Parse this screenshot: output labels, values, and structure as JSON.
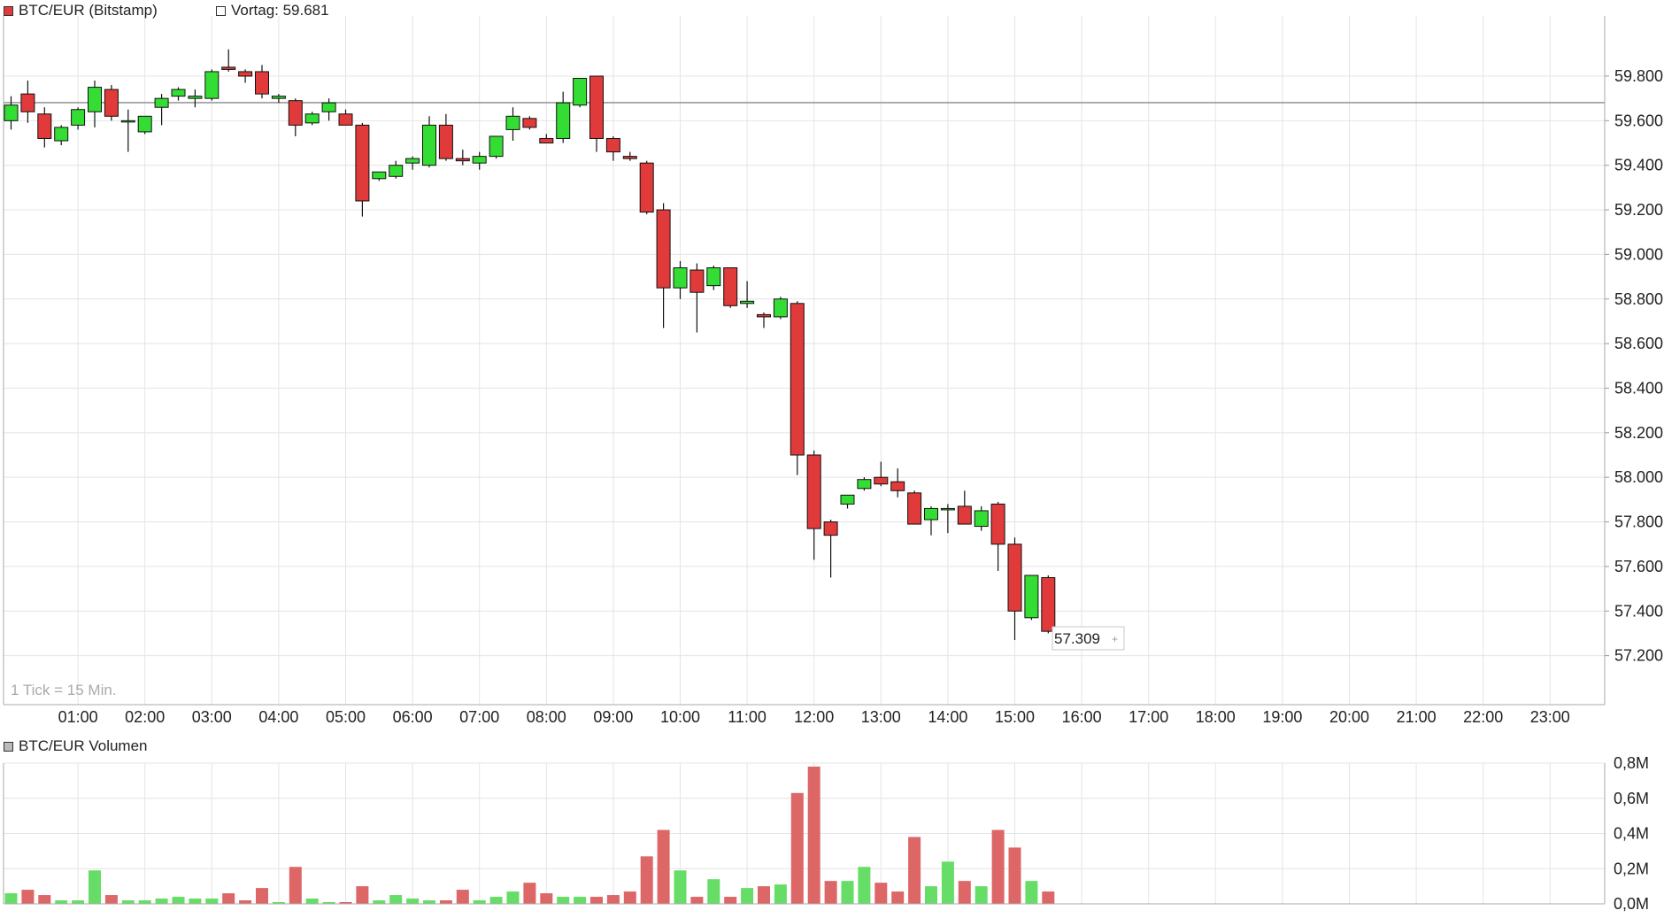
{
  "header": {
    "series_name": "BTC/EUR (Bitstamp)",
    "series_color": "#e03a3a",
    "prev_label": "Vortag: 59.681"
  },
  "volume_header": {
    "label": "BTC/EUR Volumen",
    "swatch_color": "#bbbbbb"
  },
  "tick_note": "1 Tick = 15 Min.",
  "last_price_label": "57.309",
  "colors": {
    "up": "#33dd33",
    "down": "#e03a3a",
    "vol_up": "#66dd66",
    "vol_down": "#dd6666",
    "grid": "#e4e4e4"
  },
  "chart_data": [
    {
      "type": "candlestick",
      "interval": "15 Min.",
      "time_labels": [
        "01:00",
        "02:00",
        "03:00",
        "04:00",
        "05:00",
        "06:00",
        "07:00",
        "08:00",
        "09:00",
        "10:00",
        "11:00",
        "12:00",
        "13:00",
        "14:00",
        "15:00",
        "16:00",
        "17:00",
        "18:00",
        "19:00",
        "20:00",
        "21:00",
        "22:00",
        "23:00"
      ],
      "ylim": [
        56980,
        60070
      ],
      "y_ticks": [
        57200,
        57400,
        57600,
        57800,
        58000,
        58200,
        58400,
        58600,
        58800,
        59000,
        59200,
        59400,
        59600,
        59800
      ],
      "y_tick_labels": [
        "57.200",
        "57.400",
        "57.600",
        "57.800",
        "58.000",
        "58.200",
        "58.400",
        "58.600",
        "58.800",
        "59.000",
        "59.200",
        "59.400",
        "59.600",
        "59.800"
      ],
      "reference_line": {
        "label": "Vortag",
        "value": 59681
      },
      "last_value": 57309,
      "candles": [
        {
          "t": "00:00",
          "o": 59600,
          "h": 59710,
          "l": 59560,
          "c": 59670
        },
        {
          "t": "00:15",
          "o": 59720,
          "h": 59780,
          "l": 59590,
          "c": 59640
        },
        {
          "t": "00:30",
          "o": 59630,
          "h": 59660,
          "l": 59480,
          "c": 59520
        },
        {
          "t": "00:45",
          "o": 59510,
          "h": 59580,
          "l": 59490,
          "c": 59570
        },
        {
          "t": "01:00",
          "o": 59580,
          "h": 59660,
          "l": 59560,
          "c": 59650
        },
        {
          "t": "01:15",
          "o": 59640,
          "h": 59780,
          "l": 59570,
          "c": 59750
        },
        {
          "t": "01:30",
          "o": 59740,
          "h": 59760,
          "l": 59600,
          "c": 59620
        },
        {
          "t": "01:45",
          "o": 59600,
          "h": 59650,
          "l": 59460,
          "c": 59600
        },
        {
          "t": "02:00",
          "o": 59550,
          "h": 59620,
          "l": 59540,
          "c": 59620
        },
        {
          "t": "02:15",
          "o": 59660,
          "h": 59720,
          "l": 59580,
          "c": 59700
        },
        {
          "t": "02:30",
          "o": 59710,
          "h": 59750,
          "l": 59690,
          "c": 59740
        },
        {
          "t": "02:45",
          "o": 59700,
          "h": 59740,
          "l": 59660,
          "c": 59710
        },
        {
          "t": "03:00",
          "o": 59700,
          "h": 59830,
          "l": 59690,
          "c": 59820
        },
        {
          "t": "03:15",
          "o": 59840,
          "h": 59920,
          "l": 59820,
          "c": 59830
        },
        {
          "t": "03:30",
          "o": 59820,
          "h": 59830,
          "l": 59770,
          "c": 59800
        },
        {
          "t": "03:45",
          "o": 59820,
          "h": 59850,
          "l": 59700,
          "c": 59720
        },
        {
          "t": "04:00",
          "o": 59700,
          "h": 59720,
          "l": 59680,
          "c": 59710
        },
        {
          "t": "04:15",
          "o": 59690,
          "h": 59700,
          "l": 59530,
          "c": 59580
        },
        {
          "t": "04:30",
          "o": 59590,
          "h": 59640,
          "l": 59580,
          "c": 59630
        },
        {
          "t": "04:45",
          "o": 59640,
          "h": 59700,
          "l": 59600,
          "c": 59680
        },
        {
          "t": "05:00",
          "o": 59630,
          "h": 59650,
          "l": 59580,
          "c": 59580
        },
        {
          "t": "05:15",
          "o": 59580,
          "h": 59590,
          "l": 59170,
          "c": 59240
        },
        {
          "t": "05:30",
          "o": 59340,
          "h": 59370,
          "l": 59330,
          "c": 59370
        },
        {
          "t": "05:45",
          "o": 59350,
          "h": 59420,
          "l": 59340,
          "c": 59400
        },
        {
          "t": "06:00",
          "o": 59410,
          "h": 59440,
          "l": 59380,
          "c": 59430
        },
        {
          "t": "06:15",
          "o": 59400,
          "h": 59620,
          "l": 59390,
          "c": 59580
        },
        {
          "t": "06:30",
          "o": 59580,
          "h": 59630,
          "l": 59420,
          "c": 59430
        },
        {
          "t": "06:45",
          "o": 59430,
          "h": 59470,
          "l": 59400,
          "c": 59420
        },
        {
          "t": "07:00",
          "o": 59410,
          "h": 59460,
          "l": 59380,
          "c": 59440
        },
        {
          "t": "07:15",
          "o": 59440,
          "h": 59520,
          "l": 59430,
          "c": 59530
        },
        {
          "t": "07:30",
          "o": 59560,
          "h": 59660,
          "l": 59510,
          "c": 59620
        },
        {
          "t": "07:45",
          "o": 59610,
          "h": 59620,
          "l": 59560,
          "c": 59570
        },
        {
          "t": "08:00",
          "o": 59520,
          "h": 59540,
          "l": 59500,
          "c": 59500
        },
        {
          "t": "08:15",
          "o": 59520,
          "h": 59730,
          "l": 59500,
          "c": 59680
        },
        {
          "t": "08:30",
          "o": 59670,
          "h": 59790,
          "l": 59660,
          "c": 59790
        },
        {
          "t": "08:45",
          "o": 59800,
          "h": 59800,
          "l": 59460,
          "c": 59520
        },
        {
          "t": "09:00",
          "o": 59520,
          "h": 59530,
          "l": 59420,
          "c": 59460
        },
        {
          "t": "09:15",
          "o": 59440,
          "h": 59460,
          "l": 59420,
          "c": 59430
        },
        {
          "t": "09:30",
          "o": 59410,
          "h": 59420,
          "l": 59180,
          "c": 59190
        },
        {
          "t": "09:45",
          "o": 59200,
          "h": 59230,
          "l": 58670,
          "c": 58850
        },
        {
          "t": "10:00",
          "o": 58850,
          "h": 58970,
          "l": 58800,
          "c": 58940
        },
        {
          "t": "10:15",
          "o": 58930,
          "h": 58960,
          "l": 58650,
          "c": 58830
        },
        {
          "t": "10:30",
          "o": 58860,
          "h": 58950,
          "l": 58840,
          "c": 58940
        },
        {
          "t": "10:45",
          "o": 58940,
          "h": 58940,
          "l": 58760,
          "c": 58770
        },
        {
          "t": "11:00",
          "o": 58780,
          "h": 58880,
          "l": 58760,
          "c": 58790
        },
        {
          "t": "11:15",
          "o": 58730,
          "h": 58740,
          "l": 58670,
          "c": 58720
        },
        {
          "t": "11:30",
          "o": 58720,
          "h": 58810,
          "l": 58710,
          "c": 58800
        },
        {
          "t": "11:45",
          "o": 58780,
          "h": 58790,
          "l": 58010,
          "c": 58100
        },
        {
          "t": "12:00",
          "o": 58100,
          "h": 58120,
          "l": 57630,
          "c": 57770
        },
        {
          "t": "12:15",
          "o": 57800,
          "h": 57810,
          "l": 57550,
          "c": 57740
        },
        {
          "t": "12:30",
          "o": 57880,
          "h": 57910,
          "l": 57860,
          "c": 57920
        },
        {
          "t": "12:45",
          "o": 57950,
          "h": 58000,
          "l": 57940,
          "c": 57990
        },
        {
          "t": "13:00",
          "o": 58000,
          "h": 58070,
          "l": 57960,
          "c": 57970
        },
        {
          "t": "13:15",
          "o": 57980,
          "h": 58040,
          "l": 57910,
          "c": 57940
        },
        {
          "t": "13:30",
          "o": 57930,
          "h": 57940,
          "l": 57800,
          "c": 57790
        },
        {
          "t": "13:45",
          "o": 57810,
          "h": 57870,
          "l": 57740,
          "c": 57860
        },
        {
          "t": "14:00",
          "o": 57860,
          "h": 57880,
          "l": 57750,
          "c": 57860
        },
        {
          "t": "14:15",
          "o": 57870,
          "h": 57940,
          "l": 57800,
          "c": 57790
        },
        {
          "t": "14:30",
          "o": 57780,
          "h": 57870,
          "l": 57760,
          "c": 57850
        },
        {
          "t": "14:45",
          "o": 57880,
          "h": 57890,
          "l": 57580,
          "c": 57700
        },
        {
          "t": "15:00",
          "o": 57700,
          "h": 57730,
          "l": 57270,
          "c": 57400
        },
        {
          "t": "15:15",
          "o": 57370,
          "h": 57560,
          "l": 57360,
          "c": 57560
        },
        {
          "t": "15:30",
          "o": 57550,
          "h": 57560,
          "l": 57300,
          "c": 57309
        }
      ]
    },
    {
      "type": "bar",
      "title": "BTC/EUR Volumen",
      "ylim": [
        0,
        0.8
      ],
      "y_ticks": [
        0,
        0.2,
        0.4,
        0.6,
        0.8
      ],
      "y_tick_labels": [
        "0,0M",
        "0,2M",
        "0,4M",
        "0,6M",
        "0,8M"
      ],
      "unit": "M",
      "values": [
        0.06,
        0.08,
        0.05,
        0.02,
        0.02,
        0.19,
        0.05,
        0.02,
        0.02,
        0.03,
        0.04,
        0.03,
        0.03,
        0.06,
        0.02,
        0.09,
        0.01,
        0.21,
        0.03,
        0.01,
        0.01,
        0.1,
        0.02,
        0.05,
        0.03,
        0.02,
        0.02,
        0.08,
        0.02,
        0.04,
        0.07,
        0.12,
        0.06,
        0.04,
        0.04,
        0.04,
        0.05,
        0.07,
        0.27,
        0.42,
        0.19,
        0.04,
        0.14,
        0.04,
        0.09,
        0.1,
        0.11,
        0.63,
        0.78,
        0.13,
        0.13,
        0.21,
        0.12,
        0.07,
        0.38,
        0.1,
        0.24,
        0.13,
        0.1,
        0.42,
        0.32,
        0.13,
        0.07
      ]
    }
  ]
}
